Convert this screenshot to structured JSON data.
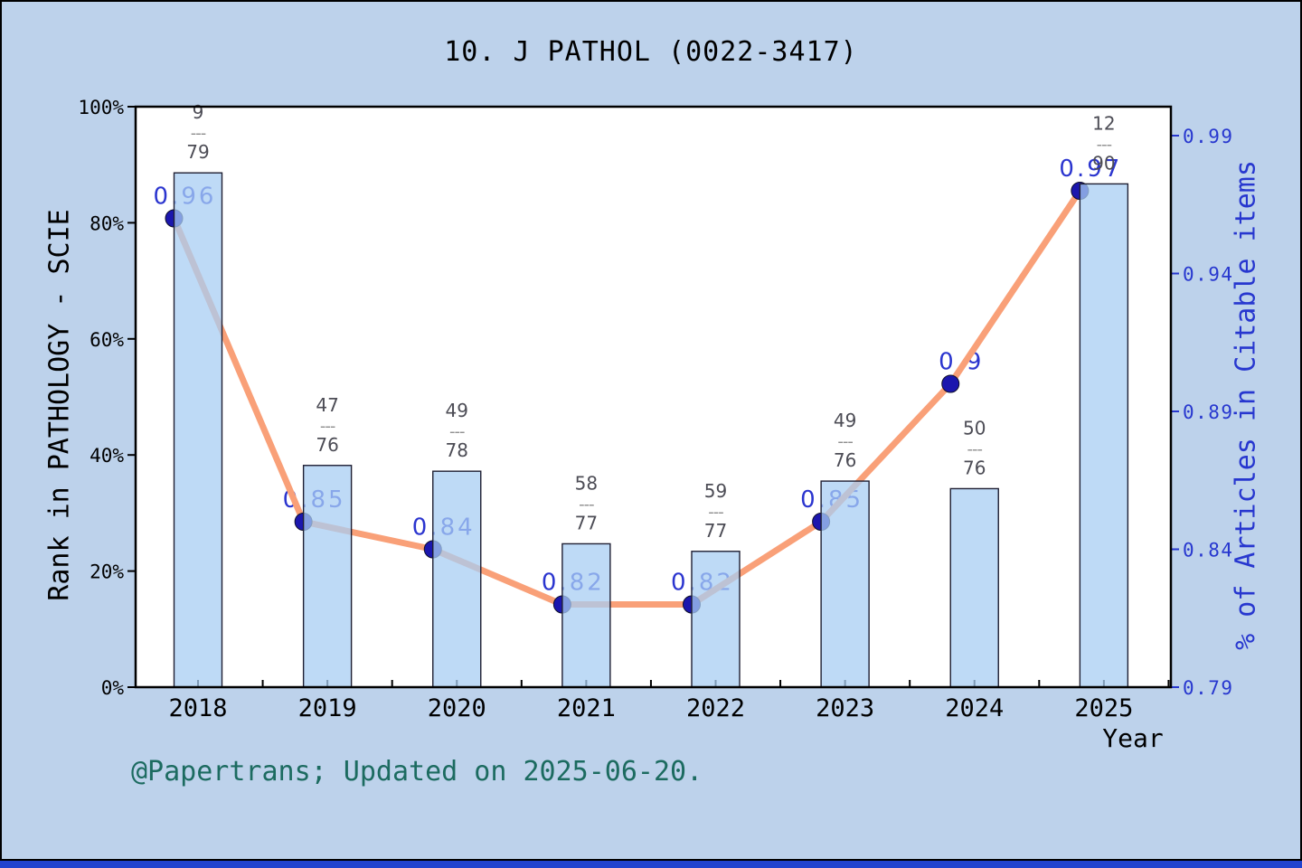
{
  "title": "10. J PATHOL (0022-3417)",
  "credit": "@Papertrans; Updated on 2025-06-20.",
  "colors": {
    "canvas_background": "#bdd2eb",
    "bottom_strip": "#2143ce",
    "plot_background": "#ffffff",
    "bar_fill": "rgba(168,206,243,0.75)",
    "bar_border": "#1f1f33",
    "line": "#f9a078",
    "marker": "#1b16ae",
    "marker_border": "#10102a",
    "value_label": "#2b35cf",
    "right_axis": "#2737cf",
    "left_axis": "#000000",
    "fraction_label": "#4c4c55",
    "fraction_dash": "#909090",
    "credit": "#1c6b60",
    "title": "#000000"
  },
  "chart_data": {
    "type": "bar",
    "title": "10. J PATHOL (0022-3417)",
    "categories": [
      "2018",
      "2019",
      "2020",
      "2021",
      "2022",
      "2023",
      "2024",
      "2025"
    ],
    "xlabel": "Year",
    "grid": false,
    "legend": "none",
    "bar_label_separator": "---",
    "series": [
      {
        "name": "Rank in PATHOLOGY - SCIE",
        "type": "bar",
        "axis": "left",
        "bar_labels": [
          "9/79",
          "47/76",
          "49/78",
          "58/77",
          "59/77",
          "49/76",
          "50/76",
          "12/90"
        ],
        "rank_numerators": [
          9,
          47,
          49,
          58,
          59,
          49,
          50,
          12
        ],
        "rank_denominators": [
          79,
          76,
          78,
          77,
          77,
          76,
          76,
          90
        ],
        "values_percent": [
          88.6,
          38.2,
          37.2,
          24.7,
          23.4,
          35.5,
          34.2,
          86.7
        ]
      },
      {
        "name": "% of Articles in Citable items",
        "type": "line",
        "axis": "right",
        "values": [
          0.96,
          0.85,
          0.84,
          0.82,
          0.82,
          0.85,
          0.9,
          0.97
        ],
        "point_labels": [
          "0.96",
          "0.85",
          "0.84",
          "0.82",
          "0.82",
          "0.85",
          "0.9",
          "0.97"
        ]
      }
    ],
    "left_axis": {
      "label": "Rank in PATHOLOGY - SCIE",
      "range_percent": [
        0,
        100
      ],
      "tick_labels": [
        "0%",
        "20%",
        "40%",
        "60%",
        "80%",
        "100%"
      ]
    },
    "right_axis": {
      "label": "% of Articles in Citable items",
      "range": [
        0.79,
        0.99
      ],
      "tick_labels": [
        "0.79",
        "0.84",
        "0.89",
        "0.94",
        "0.99"
      ]
    }
  }
}
